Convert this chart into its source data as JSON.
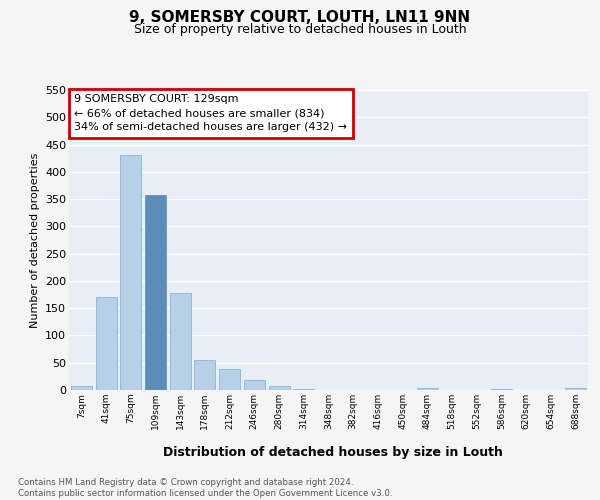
{
  "title1": "9, SOMERSBY COURT, LOUTH, LN11 9NN",
  "title2": "Size of property relative to detached houses in Louth",
  "xlabel": "Distribution of detached houses by size in Louth",
  "ylabel": "Number of detached properties",
  "bar_labels": [
    "7sqm",
    "41sqm",
    "75sqm",
    "109sqm",
    "143sqm",
    "178sqm",
    "212sqm",
    "246sqm",
    "280sqm",
    "314sqm",
    "348sqm",
    "382sqm",
    "416sqm",
    "450sqm",
    "484sqm",
    "518sqm",
    "552sqm",
    "586sqm",
    "620sqm",
    "654sqm",
    "688sqm"
  ],
  "bar_values": [
    8,
    170,
    430,
    357,
    178,
    55,
    38,
    18,
    8,
    2,
    0,
    0,
    0,
    0,
    3,
    0,
    0,
    2,
    0,
    0,
    3
  ],
  "bar_color": "#b8cfe8",
  "bar_edge_color": "#7aacd4",
  "annotation_text": "9 SOMERSBY COURT: 129sqm\n← 66% of detached houses are smaller (834)\n34% of semi-detached houses are larger (432) →",
  "annotation_box_color": "#ffffff",
  "annotation_box_edge": "#cc0000",
  "ylim": [
    0,
    550
  ],
  "yticks": [
    0,
    50,
    100,
    150,
    200,
    250,
    300,
    350,
    400,
    450,
    500,
    550
  ],
  "bg_color": "#e8eef5",
  "grid_color": "#ffffff",
  "fig_bg_color": "#f5f5f5",
  "footer_text": "Contains HM Land Registry data © Crown copyright and database right 2024.\nContains public sector information licensed under the Open Government Licence v3.0.",
  "highlight_bar_index": 3,
  "highlight_bar_color": "#5b8db8"
}
